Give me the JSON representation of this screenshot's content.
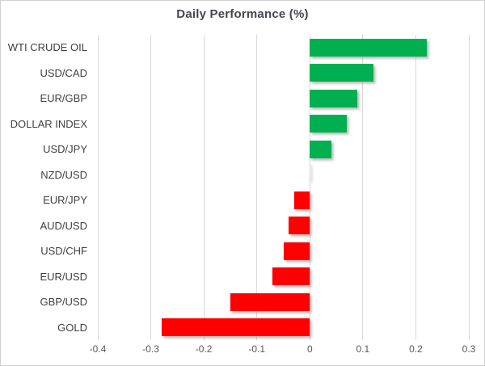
{
  "chart_data": {
    "type": "bar",
    "orientation": "horizontal",
    "title": "Daily Performance (%)",
    "categories": [
      "WTI CRUDE OIL",
      "USD/CAD",
      "EUR/GBP",
      "DOLLAR INDEX",
      "USD/JPY",
      "NZD/USD",
      "EUR/JPY",
      "AUD/USD",
      "USD/CHF",
      "EUR/USD",
      "GBP/USD",
      "GOLD"
    ],
    "values": [
      0.22,
      0.12,
      0.09,
      0.07,
      0.04,
      0.0,
      -0.03,
      -0.04,
      -0.05,
      -0.07,
      -0.15,
      -0.28
    ],
    "xlabel": "",
    "ylabel": "",
    "xlim": [
      -0.4,
      0.3
    ],
    "x_ticks": [
      -0.4,
      -0.3,
      -0.2,
      -0.1,
      0,
      0.1,
      0.2,
      0.3
    ],
    "x_tick_labels": [
      "-0.4",
      "-0.3",
      "-0.2",
      "-0.1",
      "0",
      "0.1",
      "0.2",
      "0.3"
    ],
    "grid": true,
    "legend": false,
    "positive_color": "#00B050",
    "negative_color": "#FF0000",
    "zero_sliver_color": "#F0F0F0",
    "gridline_color": "#D9D9D9",
    "title_color": "#44464F",
    "category_label_color": "#404040",
    "tick_label_color": "#595959"
  }
}
